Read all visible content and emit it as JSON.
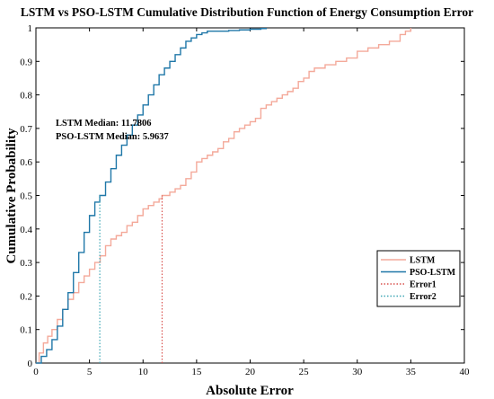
{
  "chart_data": {
    "type": "line",
    "title": "LSTM vs PSO-LSTM Cumulative Distribution Function of Energy Consumption Error",
    "xlabel": "Absolute Error",
    "ylabel": "Cumulative Probability",
    "xlim": [
      0,
      40
    ],
    "ylim": [
      0,
      1
    ],
    "xticks": [
      "0",
      "5",
      "10",
      "15",
      "20",
      "25",
      "30",
      "35",
      "40"
    ],
    "yticks": [
      "0",
      "0.1",
      "0.2",
      "0.3",
      "0.4",
      "0.5",
      "0.6",
      "0.7",
      "0.8",
      "0.9",
      "1"
    ],
    "grid": false,
    "legend_position": "lower-right",
    "annotations": [
      "LSTM Median: 11.7806",
      "PSO-LSTM Median: 5.9637"
    ],
    "series": [
      {
        "name": "LSTM",
        "color": "#f4a99a",
        "style": "solid",
        "x": [
          0,
          0.3,
          0.7,
          1.1,
          1.5,
          2.0,
          2.5,
          3.0,
          3.5,
          4.0,
          4.5,
          5.0,
          5.5,
          6.0,
          6.5,
          7.0,
          7.5,
          8.0,
          8.5,
          9.0,
          9.5,
          10.0,
          10.5,
          11.0,
          11.5,
          11.78,
          12.5,
          13.0,
          13.5,
          14.0,
          14.5,
          15.0,
          15.5,
          16.0,
          16.5,
          17.0,
          17.5,
          18.0,
          18.5,
          19.0,
          19.5,
          20.0,
          20.5,
          21.0,
          21.5,
          22.0,
          22.5,
          23.0,
          23.5,
          24.0,
          24.5,
          25.0,
          25.5,
          26.0,
          27.0,
          28.0,
          29.0,
          30.0,
          31.0,
          32.0,
          33.0,
          34.0,
          34.5,
          35.0
        ],
        "y": [
          0.0,
          0.03,
          0.06,
          0.08,
          0.1,
          0.13,
          0.16,
          0.19,
          0.21,
          0.24,
          0.26,
          0.28,
          0.3,
          0.32,
          0.35,
          0.37,
          0.38,
          0.39,
          0.41,
          0.42,
          0.44,
          0.46,
          0.47,
          0.48,
          0.49,
          0.5,
          0.51,
          0.52,
          0.53,
          0.55,
          0.57,
          0.6,
          0.61,
          0.62,
          0.63,
          0.64,
          0.66,
          0.67,
          0.69,
          0.7,
          0.71,
          0.72,
          0.73,
          0.76,
          0.77,
          0.78,
          0.79,
          0.8,
          0.81,
          0.82,
          0.84,
          0.85,
          0.87,
          0.88,
          0.89,
          0.9,
          0.91,
          0.93,
          0.94,
          0.95,
          0.96,
          0.98,
          0.99,
          1.0
        ]
      },
      {
        "name": "PSO-LSTM",
        "color": "#1f77a8",
        "style": "solid",
        "x": [
          0,
          0.5,
          1.0,
          1.5,
          2.0,
          2.5,
          3.0,
          3.5,
          4.0,
          4.5,
          5.0,
          5.5,
          5.96,
          6.5,
          7.0,
          7.5,
          8.0,
          8.5,
          9.0,
          9.5,
          10.0,
          10.5,
          11.0,
          11.5,
          12.0,
          12.5,
          13.0,
          13.5,
          14.0,
          14.5,
          15.0,
          15.5,
          16.0,
          17.0,
          18.0,
          19.0,
          20.0,
          21.0,
          21.5
        ],
        "y": [
          0.0,
          0.02,
          0.04,
          0.07,
          0.11,
          0.16,
          0.21,
          0.27,
          0.33,
          0.39,
          0.44,
          0.48,
          0.5,
          0.54,
          0.58,
          0.62,
          0.65,
          0.68,
          0.71,
          0.74,
          0.77,
          0.8,
          0.83,
          0.86,
          0.88,
          0.9,
          0.92,
          0.94,
          0.96,
          0.97,
          0.98,
          0.985,
          0.99,
          0.99,
          0.992,
          0.994,
          0.996,
          0.998,
          1.0
        ]
      },
      {
        "name": "Error1",
        "color": "#d9534f",
        "style": "dotted",
        "x": [
          11.7806,
          11.7806
        ],
        "y": [
          0,
          0.5
        ]
      },
      {
        "name": "Error2",
        "color": "#3fa7b5",
        "style": "dotted",
        "x": [
          5.9637,
          5.9637
        ],
        "y": [
          0,
          0.5
        ]
      }
    ]
  }
}
